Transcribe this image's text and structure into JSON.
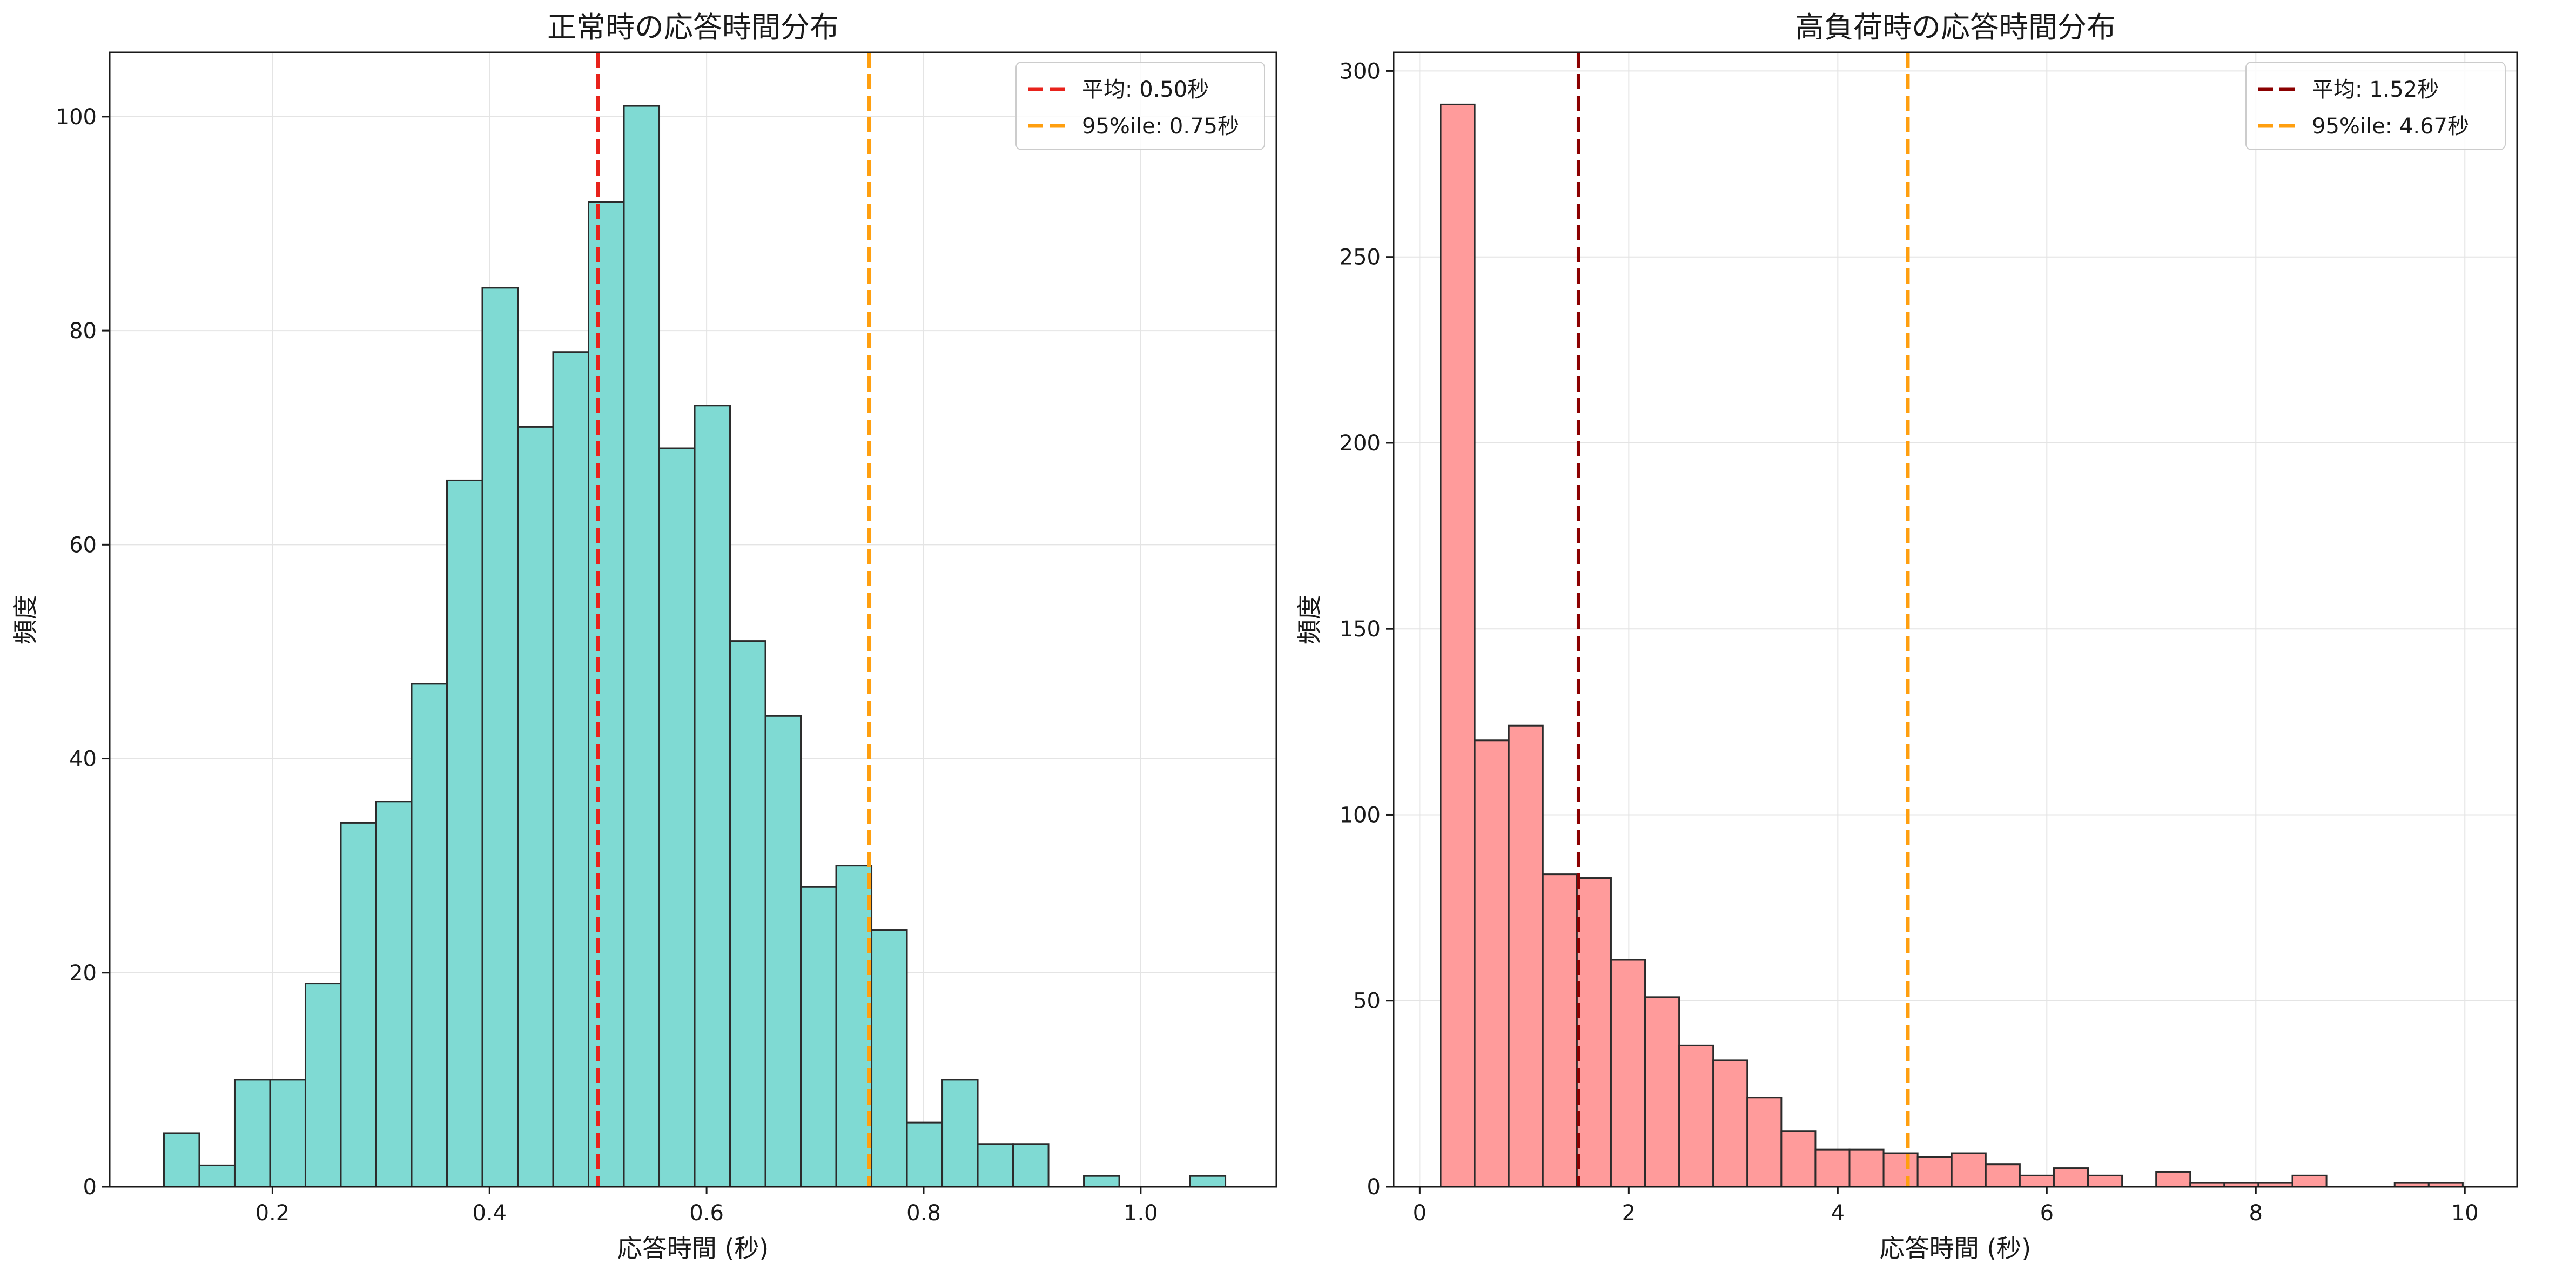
{
  "chart_data": [
    {
      "type": "bar",
      "subtype": "histogram",
      "title": "正常時の応答時間分布",
      "xlabel": "応答時間 (秒)",
      "ylabel": "頻度",
      "xlim": [
        0.05,
        1.125
      ],
      "ylim": [
        0,
        106
      ],
      "xticks": [
        0.2,
        0.4,
        0.6,
        0.8,
        1.0
      ],
      "xtick_labels": [
        "0.2",
        "0.4",
        "0.6",
        "0.8",
        "1.0"
      ],
      "yticks": [
        0,
        20,
        40,
        60,
        80,
        100
      ],
      "ytick_labels": [
        "0",
        "20",
        "40",
        "60",
        "80",
        "100"
      ],
      "bin_start": 0.1,
      "bin_width": 0.0326,
      "counts": [
        5,
        2,
        10,
        10,
        19,
        34,
        36,
        47,
        66,
        84,
        71,
        78,
        92,
        101,
        69,
        73,
        51,
        44,
        28,
        30,
        24,
        6,
        10,
        4,
        4,
        0,
        1,
        0,
        0,
        1
      ],
      "bar_color": "#7fdad3",
      "edge_color": "#2b2b2b",
      "grid": true,
      "legend_position": "top-right",
      "reference_lines": [
        {
          "label": "平均: 0.50秒",
          "x": 0.5,
          "color": "#e8221b",
          "style": "dashed"
        },
        {
          "label": "95%ile: 0.75秒",
          "x": 0.75,
          "color": "#ff9f0f",
          "style": "dashed"
        }
      ]
    },
    {
      "type": "bar",
      "subtype": "histogram",
      "title": "高負荷時の応答時間分布",
      "xlabel": "応答時間 (秒)",
      "ylabel": "頻度",
      "xlim": [
        -0.25,
        10.5
      ],
      "ylim": [
        0,
        305
      ],
      "xticks": [
        0,
        2,
        4,
        6,
        8,
        10
      ],
      "xtick_labels": [
        "0",
        "2",
        "4",
        "6",
        "8",
        "10"
      ],
      "yticks": [
        0,
        50,
        100,
        150,
        200,
        250,
        300
      ],
      "ytick_labels": [
        "0",
        "50",
        "100",
        "150",
        "200",
        "250",
        "300"
      ],
      "bin_start": 0.2,
      "bin_width": 0.326,
      "counts": [
        291,
        120,
        124,
        84,
        83,
        61,
        51,
        38,
        34,
        24,
        15,
        10,
        10,
        9,
        8,
        9,
        6,
        3,
        5,
        3,
        0,
        4,
        1,
        1,
        1,
        3,
        0,
        0,
        1,
        1
      ],
      "bar_color": "#ff9b9b",
      "edge_color": "#2b2b2b",
      "grid": true,
      "legend_position": "top-right",
      "reference_lines": [
        {
          "label": "平均: 1.52秒",
          "x": 1.52,
          "color": "#8b0000",
          "style": "dashed"
        },
        {
          "label": "95%ile: 4.67秒",
          "x": 4.67,
          "color": "#ff9f0f",
          "style": "dashed"
        }
      ]
    }
  ]
}
